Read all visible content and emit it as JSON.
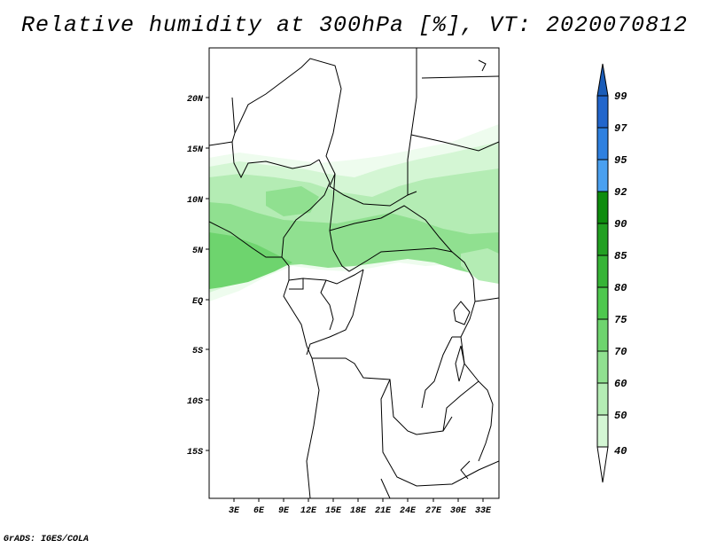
{
  "title": "Relative humidity at 300hPa [%], VT: 2020070812",
  "footer": "GrADS: IGES/COLA",
  "lat_ticks": [
    "20N",
    "15N",
    "10N",
    "5N",
    "EQ",
    "5S",
    "10S",
    "15S"
  ],
  "lon_ticks": [
    "3E",
    "6E",
    "9E",
    "12E",
    "15E",
    "18E",
    "21E",
    "24E",
    "27E",
    "30E",
    "33E"
  ],
  "colorbar": {
    "labels": [
      "99",
      "97",
      "95",
      "92",
      "90",
      "85",
      "80",
      "75",
      "70",
      "60",
      "50",
      "40"
    ],
    "colors": [
      "#2266cc",
      "#2e80e0",
      "#4aa0f0",
      "#0e8c0e",
      "#22a022",
      "#36b436",
      "#4ec84e",
      "#6ed46e",
      "#90e090",
      "#b4ecb4",
      "#d4f6d4",
      "#eefcee"
    ],
    "top_color": "#1a5cb8",
    "bottom_color": "#ffffff"
  }
}
